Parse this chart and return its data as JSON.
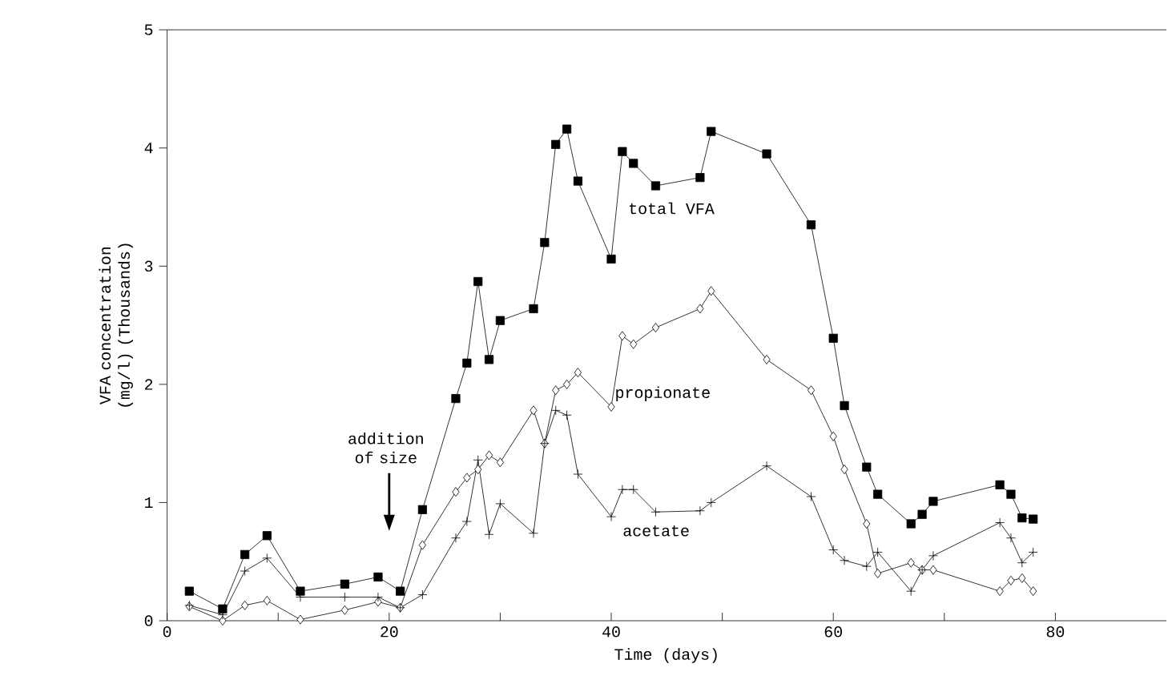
{
  "chart_data": {
    "type": "line",
    "xlabel": "Time (days)",
    "ylabel": "VFA concentration (mg/l) (Thousands)",
    "xlim": [
      0,
      90
    ],
    "ylim": [
      0,
      5
    ],
    "xticks": [
      0,
      {
        "value": 10,
        "label": null
      },
      20,
      {
        "value": 30,
        "label": null
      },
      40,
      {
        "value": 50,
        "label": null
      },
      60,
      {
        "value": 70,
        "label": null
      },
      80
    ],
    "yticks": [
      0,
      1,
      2,
      3,
      4,
      5
    ],
    "grid": false,
    "line_style": "solid",
    "annotations": [
      "addition of size"
    ],
    "series": [
      {
        "name": "total VFA",
        "color": "#000000",
        "marker": "square",
        "x": [
          2,
          5,
          7,
          9,
          12,
          16,
          19,
          21,
          23,
          26,
          27,
          28,
          29,
          30,
          33,
          34,
          35,
          36,
          37,
          40,
          41,
          42,
          44,
          48,
          49,
          54,
          58,
          60,
          61,
          63,
          64,
          67,
          68,
          69,
          75,
          76,
          77,
          78
        ],
        "values": [
          0.25,
          0.1,
          0.56,
          0.72,
          0.25,
          0.31,
          0.37,
          0.25,
          0.94,
          1.88,
          2.18,
          2.87,
          2.21,
          2.54,
          2.64,
          3.2,
          4.03,
          4.16,
          3.72,
          3.06,
          3.97,
          3.87,
          3.68,
          3.75,
          4.14,
          3.95,
          3.35,
          2.39,
          1.82,
          1.3,
          1.07,
          0.82,
          0.9,
          1.01,
          1.15,
          1.07,
          0.87,
          0.86
        ]
      },
      {
        "name": "propionate",
        "color": "#000000",
        "marker": "diamond",
        "x": [
          2,
          5,
          7,
          9,
          12,
          16,
          19,
          21,
          23,
          26,
          27,
          28,
          29,
          30,
          33,
          34,
          35,
          36,
          37,
          40,
          41,
          42,
          44,
          48,
          49,
          54,
          58,
          60,
          61,
          63,
          64,
          67,
          68,
          69,
          75,
          76,
          77,
          78
        ],
        "values": [
          0.12,
          0.0,
          0.13,
          0.17,
          0.01,
          0.09,
          0.16,
          0.11,
          0.64,
          1.09,
          1.21,
          1.28,
          1.4,
          1.34,
          1.78,
          1.5,
          1.95,
          2.0,
          2.1,
          1.81,
          2.41,
          2.34,
          2.48,
          2.64,
          2.79,
          2.21,
          1.95,
          1.56,
          1.28,
          0.82,
          0.4,
          0.49,
          0.43,
          0.43,
          0.25,
          0.34,
          0.36,
          0.25
        ]
      },
      {
        "name": "acetate",
        "color": "#000000",
        "marker": "cross",
        "x": [
          2,
          5,
          7,
          9,
          12,
          16,
          19,
          21,
          23,
          26,
          27,
          28,
          29,
          30,
          33,
          34,
          35,
          36,
          37,
          40,
          41,
          42,
          44,
          48,
          49,
          54,
          58,
          60,
          61,
          63,
          64,
          67,
          68,
          69,
          75,
          76,
          77,
          78
        ],
        "values": [
          0.13,
          0.05,
          0.42,
          0.53,
          0.2,
          0.2,
          0.2,
          0.11,
          0.22,
          0.7,
          0.84,
          1.36,
          0.73,
          0.99,
          0.74,
          1.5,
          1.78,
          1.74,
          1.24,
          0.88,
          1.11,
          1.11,
          0.92,
          0.93,
          1.0,
          1.31,
          1.05,
          0.6,
          0.51,
          0.46,
          0.58,
          0.25,
          0.43,
          0.55,
          0.83,
          0.7,
          0.49,
          0.58
        ]
      }
    ]
  }
}
